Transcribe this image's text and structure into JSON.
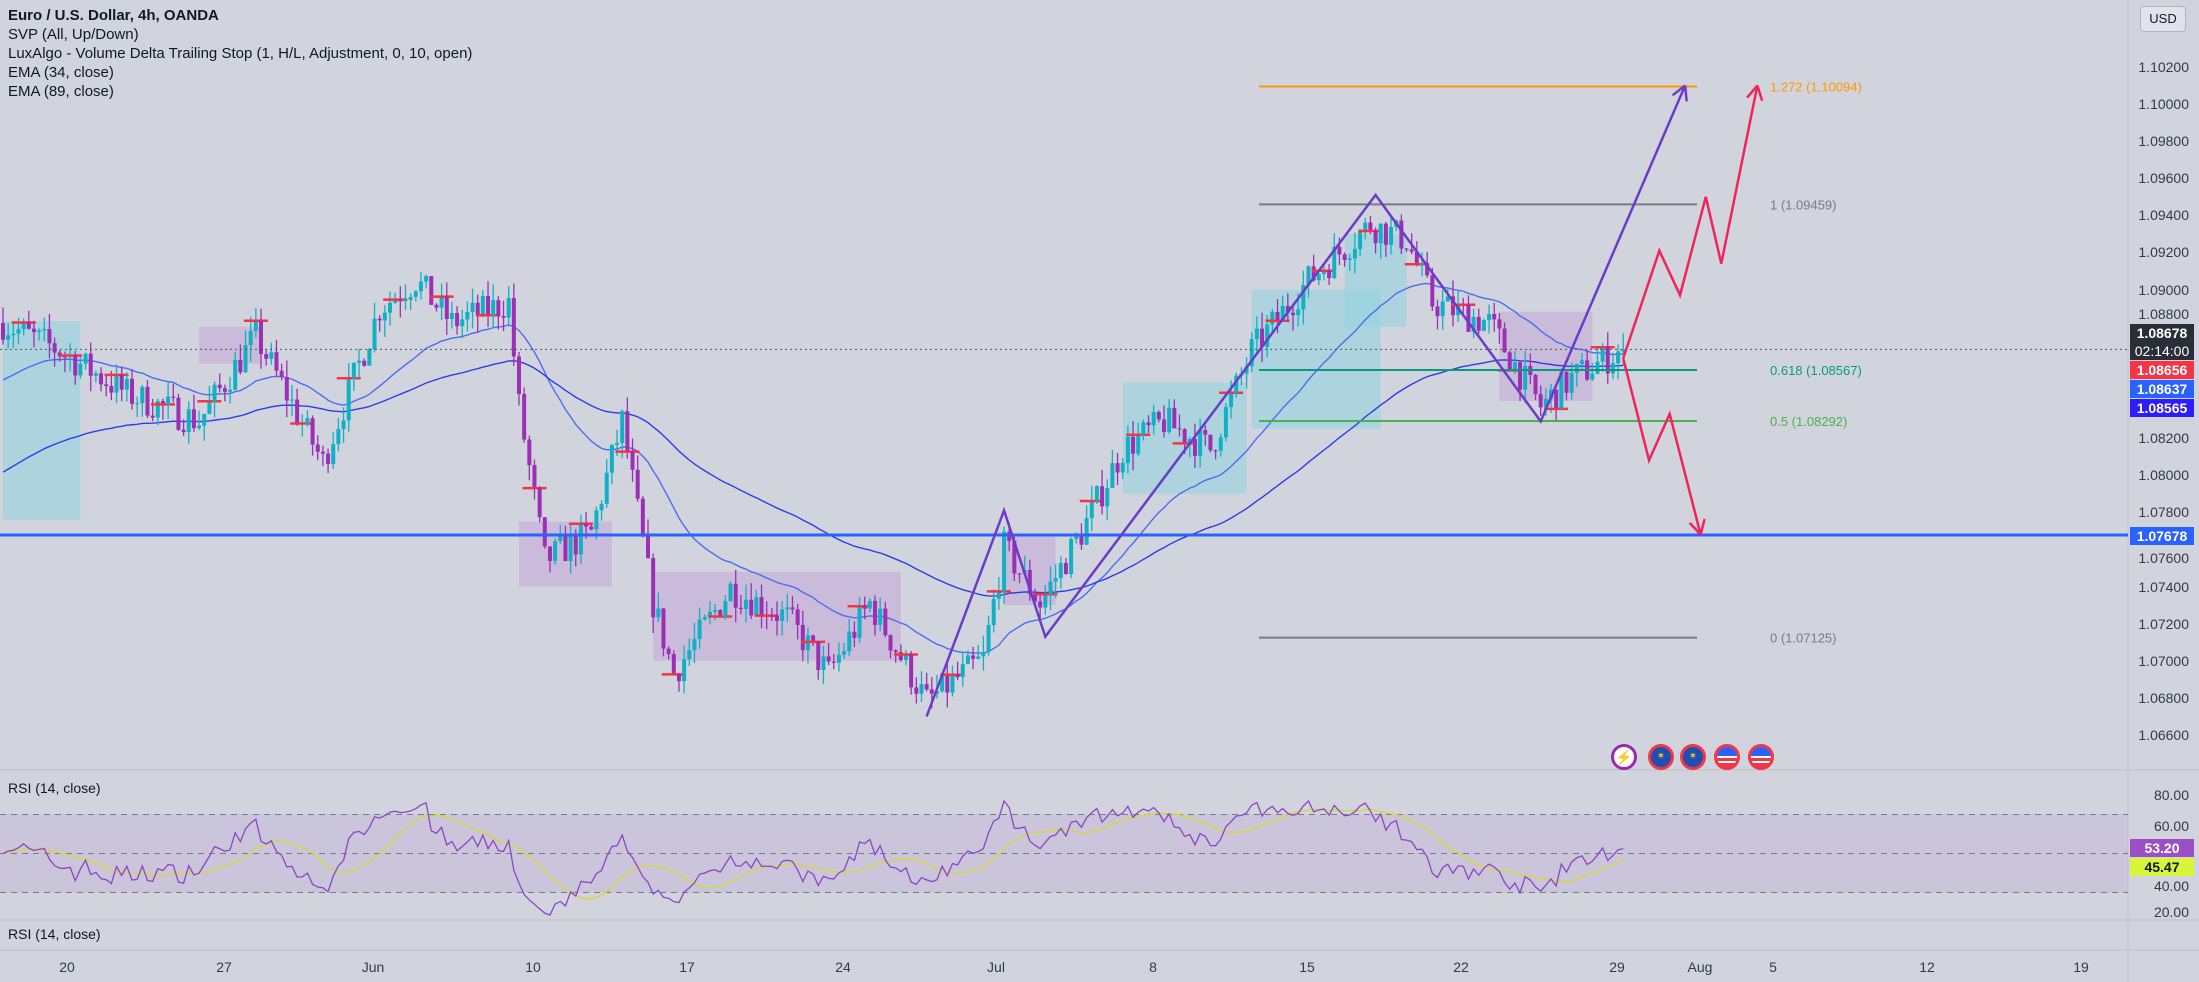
{
  "legend": {
    "title": "Euro / U.S. Dollar, 4h, OANDA",
    "indicators": [
      "SVP (All, Up/Down)",
      "LuxAlgo - Volume Delta Trailing Stop (1, H/L, Adjustment, 0, 10, open)",
      "EMA (34, close)",
      "EMA (89, close)"
    ]
  },
  "currency_button": "USD",
  "price_axis": {
    "ticks": [
      "1.10200",
      "1.10000",
      "1.09800",
      "1.09600",
      "1.09400",
      "1.09200",
      "1.09000",
      "1.08800",
      "1.08200",
      "1.08000",
      "1.07800",
      "1.07600",
      "1.07400",
      "1.07200",
      "1.07000",
      "1.06800",
      "1.06600"
    ],
    "tags": [
      {
        "name": "last-price",
        "value": "1.08678",
        "sub": "02:14:00",
        "price": 1.08678,
        "color": "#2a2e39"
      },
      {
        "name": "ema-34",
        "value": "1.08656",
        "price": 1.08656,
        "color": "#f23645"
      },
      {
        "name": "ema-89",
        "value": "1.08637",
        "price": 1.08637,
        "color": "#2962ff"
      },
      {
        "name": "trailing-stop",
        "value": "1.08565",
        "price": 1.08565,
        "color": "#2e1cff"
      },
      {
        "name": "support-line",
        "value": "1.07678",
        "price": 1.07678,
        "color": "#2962ff"
      }
    ]
  },
  "fib_levels": [
    {
      "label": "1.272 (1.10094)",
      "price": 1.10094,
      "color": "#ff9800"
    },
    {
      "label": "1 (1.09459)",
      "price": 1.09459,
      "color": "#787b86"
    },
    {
      "label": "0.618 (1.08567)",
      "price": 1.08567,
      "color": "#089981"
    },
    {
      "label": "0.5 (1.08292)",
      "price": 1.08292,
      "color": "#4caf50"
    },
    {
      "label": "0 (1.07125)",
      "price": 1.07125,
      "color": "#787b86"
    }
  ],
  "support_price": 1.07678,
  "last_price": 1.08678,
  "price_path": [
    [
      0,
      1.0882
    ],
    [
      11,
      1.0867
    ],
    [
      24,
      1.0844
    ],
    [
      38,
      1.0829
    ],
    [
      49,
      1.0875
    ],
    [
      62,
      1.0807
    ],
    [
      73,
      1.089
    ],
    [
      80,
      1.0905
    ],
    [
      87,
      1.0882
    ],
    [
      98,
      1.0893
    ],
    [
      100,
      1.0837
    ],
    [
      105,
      1.0754
    ],
    [
      114,
      1.0769
    ],
    [
      120,
      1.0829
    ],
    [
      126,
      1.0731
    ],
    [
      130,
      1.0693
    ],
    [
      141,
      1.0739
    ],
    [
      152,
      1.0723
    ],
    [
      160,
      1.0693
    ],
    [
      168,
      1.0731
    ],
    [
      179,
      1.0678
    ],
    [
      190,
      1.0701
    ],
    [
      194,
      1.0761
    ],
    [
      201,
      1.0731
    ],
    [
      209,
      1.0769
    ],
    [
      217,
      1.0814
    ],
    [
      225,
      1.0829
    ],
    [
      234,
      1.0814
    ],
    [
      242,
      1.0867
    ],
    [
      253,
      1.0905
    ],
    [
      265,
      1.0935
    ],
    [
      272,
      1.0927
    ],
    [
      277,
      1.0893
    ],
    [
      288,
      1.0882
    ],
    [
      298,
      1.0837
    ],
    [
      304,
      1.0852
    ],
    [
      314,
      1.0868
    ]
  ],
  "drawings": {
    "abcd": [
      [
        179,
        1.067
      ],
      [
        194,
        1.0781
      ],
      [
        202,
        1.0713
      ],
      [
        266,
        1.0951
      ],
      [
        298,
        1.0829
      ],
      [
        326,
        1.101
      ]
    ],
    "bull_path": [
      [
        314,
        1.0863
      ],
      [
        321,
        1.0921
      ],
      [
        325,
        1.0897
      ],
      [
        330,
        1.095
      ],
      [
        333,
        1.0914
      ],
      [
        340,
        1.101
      ]
    ],
    "bear_path": [
      [
        314,
        1.0863
      ],
      [
        319,
        1.0808
      ],
      [
        323,
        1.0833
      ],
      [
        329,
        1.0768
      ]
    ]
  },
  "rsi": {
    "label": "RSI (14, close)",
    "ticks": [
      "80.00",
      "60.00",
      "40.00",
      "20.00"
    ],
    "value": "53.20",
    "ma_value": "45.47"
  },
  "rsi2": {
    "label": "RSI (14, close)"
  },
  "time_axis": [
    "20",
    "27",
    "Jun",
    "10",
    "17",
    "24",
    "Jul",
    "8",
    "15",
    "22",
    "29",
    "Aug",
    "5",
    "12",
    "19"
  ],
  "events": [
    "ideas-icon",
    "eu-event-icon",
    "eu-event-icon",
    "us-event-icon",
    "us-event-icon"
  ]
}
